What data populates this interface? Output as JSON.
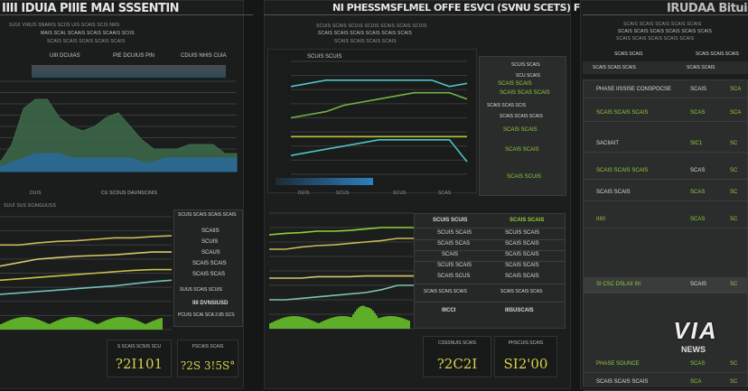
{
  "panels": {
    "left": {
      "title": "IIII IDUIA PIIIE MAI SSSENTIN",
      "subtitle_lines": [
        "SUUI VIRUS SNARIS SCIIS UIS SCAIS SCIS NRS",
        "MAIS SCAL SCAAIS SCAIS SCAAIS SCIIS",
        "SCAIS SCAIS SCAIS SCAIS SCAIS"
      ],
      "chart_headers": [
        "UIII DCUIAS",
        "PIE DCUIUS PIN",
        "CDUIS NHIS CUIA"
      ],
      "chart_footer": [
        "DUIS",
        "CU SCDUS DAUNSCINIS"
      ],
      "lower_header": "SUUI SUS SCAIGUUSS",
      "table_header": "SCUIS SCAIS SCAIS SCAIS",
      "table_rows": [
        "SCAIIS",
        "SCUIS",
        "SCAUS",
        "SCAIS SCAIS",
        "SCAIS SCAS"
      ],
      "table_footer": [
        "SUUS SCAIS SCUIS",
        "IIII DVNSIUSD",
        "PCUIS SCAI SCA 2.85 SCS"
      ],
      "kpis": [
        {
          "label": "S SCAIS SCNIS SCU",
          "value": "?2I101"
        },
        {
          "label": "PSCAIS SCAIS",
          "value": "?2S 3!5S°"
        }
      ]
    },
    "middle": {
      "title": "NI PHESSMSFLMEL OFFE ESVCI (SVNU SCETS) FHGINS",
      "subtitle_lines": [
        "SCUIS SCAIS SCUIS SCUIS SCAIS SCAIS SCUIS",
        "SCAIS SCAIS SCAIS SCAIS SCAIS SCAIS",
        "SCAIS SCAIS SCAIS SCAIS"
      ],
      "chart_header": "SCUIS SCUIS",
      "chart_footer": [
        "DUIS",
        "SCUS",
        "SCUS",
        "SCAS"
      ],
      "side_header": "SCUIS SCAIS",
      "side_items": [
        "SCU SCAIS",
        "SCAIS SCAIS",
        "SCAIS SCAS SCAIS",
        "SCAIS SCAS SCIS"
      ],
      "side_lower": [
        "SCAIS SCAIS SCAIS",
        "SCAIS SCAIS",
        "SCAIS SCAIS",
        "SCAIS SCUIS"
      ],
      "table_headers": [
        "SCUIS SCUIS",
        "SCAIS SCAIS"
      ],
      "table_rows": [
        [
          "SCUIS SCAIS",
          "SCUIS SCAIS"
        ],
        [
          "SCAIS SCAS",
          "SCAIS SCAIS"
        ],
        [
          "SCAIS",
          "SCAIS SCAIS"
        ],
        [
          "SCUIS SCAIS",
          "SCAIS SCAIS"
        ],
        [
          "SCAIS SCUS",
          "SCAIS SCAIS"
        ],
        [
          "SCAIS SCAIS SCAIS",
          "SCAIS SCAIS SCAS"
        ],
        [
          "IIICCI",
          "IIISUSCAIS"
        ]
      ],
      "kpis": [
        {
          "label": "CSSSNUIS SCAIS",
          "value": "?2C2I"
        },
        {
          "label": "PHSCUIS SCAIS",
          "value": "SI2'00"
        }
      ]
    },
    "right": {
      "title": "IRUDAA Bituisa",
      "subtitle_lines": [
        "SCAIS SCAIS SCAIS SCAIS SCAIS",
        "SCAIS SCAIS SCAIS SCAIS SCAIS SCAIS",
        "SCAIS SCAIS SCAIS SCAIS SCAIS"
      ],
      "header_cells": [
        "SCAIS SCAIS",
        "SCAIS SCAIS SCAIS",
        "SCAIS SCAIS SCAIS",
        "SCAIS SCAIS"
      ],
      "rows": [
        {
          "label": "PHASE IISSISE CONSPOCSE",
          "value": "SCAIS",
          "extra": "SCA"
        },
        {
          "label": "SCAIS SCAIS SCAIS",
          "value": "SCAS",
          "extra": "SCA"
        },
        {
          "label": "SACIIAIT",
          "value": "SIC1",
          "extra": "SC"
        },
        {
          "label": "SCAIS SCAIS SCAIS",
          "value": "SCAS",
          "extra": "SC"
        },
        {
          "label": "SCAIS SCAIS",
          "value": "SCAS",
          "extra": "SC"
        },
        {
          "label": "IIIIII",
          "value": "SCAS",
          "extra": "SC"
        },
        {
          "label": "SI CSC DSLAII IIII",
          "value": "SCAIS",
          "extra": "SC"
        },
        {
          "label": "PHASE SOUNCE",
          "value": "SCAS",
          "extra": "SC"
        },
        {
          "label": "SCAIS SCAIS SCAIS",
          "value": "SCA",
          "extra": "SC"
        }
      ]
    }
  },
  "watermark": {
    "brand": "VIA",
    "sub": "NEWS"
  },
  "colors": {
    "bg": "#151616",
    "panel": "#1e1f1f",
    "green": "#8fd13a",
    "yellow": "#d6d24a",
    "teal": "#4fc3c8",
    "blue": "#2f7fc0",
    "area": "#3d6b4a"
  },
  "chart_data": [
    {
      "type": "area",
      "title": "left-top",
      "x": [
        0,
        1,
        2,
        3,
        4,
        5,
        6,
        7,
        8,
        9,
        10,
        11,
        12,
        13,
        14,
        15,
        16,
        17,
        18,
        19,
        20
      ],
      "series": [
        {
          "name": "green-area",
          "values": [
            2,
            6,
            14,
            16,
            16,
            12,
            10,
            9,
            10,
            12,
            13,
            10,
            7,
            5,
            5,
            5,
            6,
            6,
            6,
            4,
            4
          ]
        },
        {
          "name": "blue-area",
          "values": [
            1,
            2,
            3,
            4,
            4,
            4,
            3,
            3,
            3,
            3,
            3,
            3,
            2,
            2,
            3,
            3,
            3,
            3,
            3,
            3,
            3
          ]
        }
      ],
      "ylim": [
        0,
        20
      ]
    },
    {
      "type": "line",
      "title": "middle-top",
      "x": [
        0,
        1,
        2,
        3,
        4,
        5,
        6,
        7,
        8,
        9,
        10
      ],
      "series": [
        {
          "name": "teal-1",
          "values": [
            14,
            14.5,
            15,
            15,
            15,
            15,
            15,
            15,
            15,
            14,
            14.5
          ]
        },
        {
          "name": "green-1",
          "values": [
            9,
            9.5,
            10,
            11,
            11.5,
            12,
            12.5,
            13,
            13,
            13,
            12
          ]
        },
        {
          "name": "yellow-1",
          "values": [
            6,
            6,
            6,
            6,
            6,
            6,
            6,
            6,
            6,
            6,
            6
          ]
        },
        {
          "name": "teal-2",
          "values": [
            3,
            3.5,
            4,
            4.5,
            5,
            5.5,
            5.5,
            5.5,
            5.5,
            5.5,
            2
          ]
        }
      ],
      "ylim": [
        0,
        18
      ]
    },
    {
      "type": "line",
      "title": "left-bottom",
      "x": [
        0,
        1,
        2,
        3,
        4,
        5,
        6,
        7,
        8,
        9
      ],
      "series": [
        {
          "name": "yellow-a",
          "values": [
            12,
            12,
            12.3,
            12.5,
            12.6,
            12.8,
            13,
            13,
            13.2,
            13.3
          ]
        },
        {
          "name": "yellow-b",
          "values": [
            9,
            9.5,
            10,
            10.2,
            10.4,
            10.5,
            10.6,
            10.8,
            11,
            11
          ]
        },
        {
          "name": "yellow-c",
          "values": [
            7,
            7.2,
            7.4,
            7.6,
            7.8,
            8,
            8.2,
            8.4,
            8.5,
            8.5
          ]
        },
        {
          "name": "teal-c",
          "values": [
            5,
            5.2,
            5.4,
            5.6,
            5.8,
            6,
            6.2,
            6.5,
            6.8,
            7
          ]
        }
      ],
      "ylim": [
        0,
        16
      ]
    },
    {
      "type": "line",
      "title": "middle-bottom",
      "x": [
        0,
        1,
        2,
        3,
        4,
        5,
        6,
        7,
        8,
        9
      ],
      "series": [
        {
          "name": "green-a",
          "values": [
            13,
            13.2,
            13.3,
            13.5,
            13.5,
            13.6,
            13.8,
            14,
            14,
            14
          ]
        },
        {
          "name": "yellow-a",
          "values": [
            11,
            11,
            11.3,
            11.5,
            11.6,
            11.8,
            12,
            12.2,
            12.5,
            12.5
          ]
        },
        {
          "name": "yellow-b",
          "values": [
            7,
            7,
            7,
            7.2,
            7.2,
            7.2,
            7.3,
            7.3,
            7.3,
            7.3
          ]
        },
        {
          "name": "teal-b",
          "values": [
            4,
            4,
            4.2,
            4.4,
            4.6,
            4.8,
            5,
            5.4,
            6,
            6
          ]
        }
      ],
      "ylim": [
        0,
        16
      ]
    }
  ]
}
